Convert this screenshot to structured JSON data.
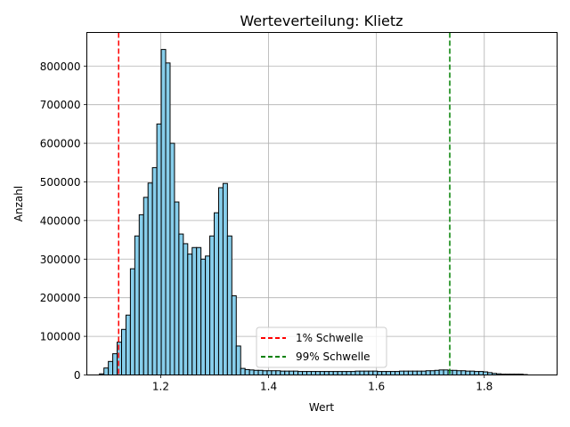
{
  "chart_data": {
    "type": "bar",
    "title": "Werteverteilung: Klietz",
    "xlabel": "Wert",
    "ylabel": "Anzahl",
    "xlim": [
      1.063,
      1.935
    ],
    "ylim": [
      0,
      887000
    ],
    "x_ticks": [
      1.2,
      1.4,
      1.6,
      1.8
    ],
    "x_tick_labels": [
      "1.2",
      "1.4",
      "1.6",
      "1.8"
    ],
    "y_ticks": [
      0,
      100000,
      200000,
      300000,
      400000,
      500000,
      600000,
      700000,
      800000
    ],
    "y_tick_labels": [
      "0",
      "100000",
      "200000",
      "300000",
      "400000",
      "500000",
      "600000",
      "700000",
      "800000"
    ],
    "grid": true,
    "bar_color": "#87ceeb",
    "bar_edge_color": "#000000",
    "bin_start": 1.0865,
    "bin_width": 0.00818,
    "values": [
      3000,
      18000,
      35000,
      55000,
      85000,
      118000,
      155000,
      275000,
      360000,
      415000,
      460000,
      497000,
      537000,
      650000,
      843000,
      808000,
      600000,
      448000,
      365000,
      340000,
      313000,
      330000,
      330000,
      300000,
      308000,
      360000,
      420000,
      485000,
      496000,
      360000,
      205000,
      75000,
      17000,
      14000,
      13000,
      12000,
      12000,
      11000,
      11000,
      11000,
      11000,
      10000,
      10000,
      10000,
      10000,
      9000,
      9000,
      9000,
      9000,
      9000,
      9000,
      9000,
      9000,
      9000,
      9000,
      9000,
      9000,
      9000,
      10000,
      10000,
      10000,
      10000,
      10000,
      9000,
      9000,
      9000,
      9000,
      9000,
      10000,
      10000,
      10000,
      10000,
      10000,
      10000,
      11000,
      11000,
      12000,
      13000,
      13000,
      12000,
      12000,
      11000,
      11000,
      10000,
      10000,
      9000,
      9000,
      8000,
      6000,
      4000,
      3000,
      2000,
      2000,
      2000,
      2000,
      2000,
      1000
    ],
    "thresholds": [
      {
        "name": "1% Schwelle",
        "value": 1.122,
        "color": "#ff0000"
      },
      {
        "name": "99% Schwelle",
        "value": 1.736,
        "color": "#008000"
      }
    ],
    "legend_position": "lower-center"
  }
}
